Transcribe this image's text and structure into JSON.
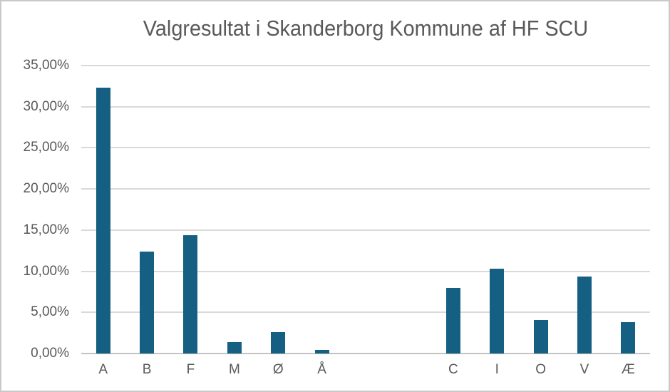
{
  "chart_data": {
    "type": "bar",
    "title": "Valgresultat i Skanderborg Kommune af HF SCU",
    "categories": [
      "A",
      "B",
      "F",
      "M",
      "Ø",
      "Å",
      "",
      "",
      "C",
      "I",
      "O",
      "V",
      "Æ"
    ],
    "values": [
      32.3,
      12.4,
      14.4,
      1.4,
      2.6,
      0.4,
      null,
      null,
      8.0,
      10.3,
      4.1,
      9.4,
      3.8
    ],
    "xlabel": "",
    "ylabel": "",
    "ylim": [
      0,
      35
    ],
    "y_tick_values": [
      35,
      30,
      25,
      20,
      15,
      10,
      5,
      0
    ],
    "y_tick_labels": [
      "35,00%",
      "30,00%",
      "25,00%",
      "20,00%",
      "15,00%",
      "10,00%",
      "5,00%",
      "0,00%"
    ],
    "grid": true,
    "legend": false,
    "number_format": "0,00% (Danish decimal comma)",
    "colors": {
      "bar": "#156082",
      "gridline": "#d9d9d9",
      "axis_line": "#c3c3c3",
      "text": "#595959",
      "background": "#ffffff",
      "frame_border": "#c9c9c9"
    }
  }
}
